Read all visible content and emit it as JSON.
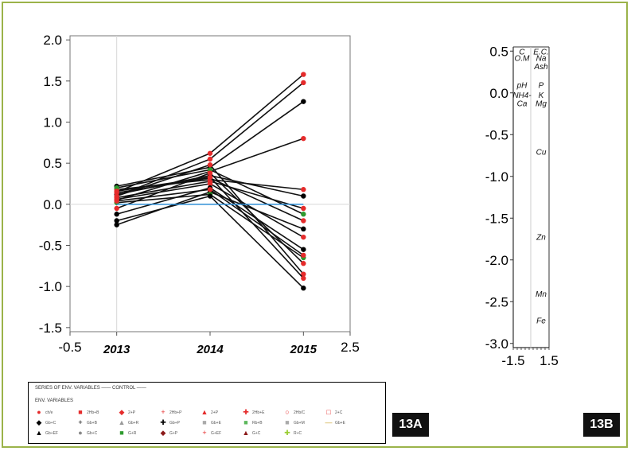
{
  "chart_data": [
    {
      "panel": "13A",
      "type": "line",
      "x_ticks": [
        "-0.5",
        "2013",
        "2014",
        "2015",
        "2.5"
      ],
      "y_ticks": [
        "2.0",
        "1.5",
        "1.0",
        "0.5",
        "0.0",
        "-0.5",
        "-1.0",
        "-1.5"
      ],
      "ylim": [
        -1.55,
        2.05
      ],
      "series": [
        {
          "values": [
            0.22,
            0.45,
            1.25
          ],
          "color": "#000000"
        },
        {
          "values": [
            0.15,
            0.62,
            1.58
          ],
          "color": "#e52b2b"
        },
        {
          "values": [
            0.1,
            0.55,
            1.48
          ],
          "color": "#e52b2b"
        },
        {
          "values": [
            0.05,
            0.4,
            0.8
          ],
          "color": "#e52b2b"
        },
        {
          "values": [
            0.18,
            0.3,
            0.18
          ],
          "color": "#e52b2b"
        },
        {
          "values": [
            0.12,
            0.35,
            0.1
          ],
          "color": "#000000"
        },
        {
          "values": [
            0.08,
            0.28,
            -0.05
          ],
          "color": "#e52b2b"
        },
        {
          "values": [
            0.2,
            0.42,
            -0.12
          ],
          "color": "#2e9a2e"
        },
        {
          "values": [
            0.14,
            0.32,
            -0.2
          ],
          "color": "#e52b2b"
        },
        {
          "values": [
            -0.25,
            0.15,
            -0.3
          ],
          "color": "#000000"
        },
        {
          "values": [
            0.06,
            0.25,
            -0.4
          ],
          "color": "#e52b2b"
        },
        {
          "values": [
            -0.12,
            0.2,
            -0.55
          ],
          "color": "#000000"
        },
        {
          "values": [
            0.02,
            0.12,
            -0.65
          ],
          "color": "#2e9a2e"
        },
        {
          "values": [
            -0.05,
            0.38,
            -0.72
          ],
          "color": "#e52b2b"
        },
        {
          "values": [
            0.1,
            0.48,
            -0.85
          ],
          "color": "#e52b2b"
        },
        {
          "values": [
            0.16,
            0.33,
            -0.9
          ],
          "color": "#e52b2b"
        },
        {
          "values": [
            -0.2,
            0.1,
            -1.02
          ],
          "color": "#000000"
        },
        {
          "values": [
            0.04,
            0.18,
            -0.62
          ],
          "color": "#e52b2b"
        },
        {
          "values": [
            0.0,
            0.0,
            0.0
          ],
          "color": "#2f8fd6"
        }
      ],
      "grid": false
    },
    {
      "panel": "13B",
      "type": "scatter",
      "y_ticks": [
        "0.5",
        "0.0",
        "-0.5",
        "-1.0",
        "-1.5",
        "-2.0",
        "-2.5",
        "-3.0"
      ],
      "x_ticks": [
        "-1.5",
        "1.5"
      ],
      "ylim": [
        -3.05,
        0.55
      ],
      "left_column": [
        {
          "label": "C",
          "y": 0.5
        },
        {
          "label": "O.M",
          "y": 0.42
        },
        {
          "label": "pH",
          "y": 0.1
        },
        {
          "label": "NH4-",
          "y": -0.02
        },
        {
          "label": "Ca",
          "y": -0.12
        }
      ],
      "right_column": [
        {
          "label": "E.C.",
          "y": 0.5
        },
        {
          "label": "Na",
          "y": 0.42
        },
        {
          "label": "Ash",
          "y": 0.32
        },
        {
          "label": "P",
          "y": 0.1
        },
        {
          "label": "K",
          "y": -0.02
        },
        {
          "label": "Mg",
          "y": -0.12
        },
        {
          "label": "Cu",
          "y": -0.7
        },
        {
          "label": "Zn",
          "y": -1.72
        },
        {
          "label": "Mn",
          "y": -2.4
        },
        {
          "label": "Fe",
          "y": -2.72
        }
      ]
    }
  ],
  "legend": {
    "header": "SERIES OF ENV. VARIABLES —— CONTROL ——",
    "subheader": "ENV. VARIABLES",
    "items": [
      {
        "label": "ch/e",
        "marker": "●",
        "color": "#e52b2b"
      },
      {
        "label": "2Hb+B",
        "marker": "■",
        "color": "#e52b2b"
      },
      {
        "label": "2+P",
        "marker": "◆",
        "color": "#e52b2b"
      },
      {
        "label": "2Hb+P",
        "marker": "+",
        "color": "#e52b2b"
      },
      {
        "label": "2+P",
        "marker": "▲",
        "color": "#e52b2b"
      },
      {
        "label": "2Hb+E",
        "marker": "✚",
        "color": "#e52b2b"
      },
      {
        "label": "2Hb/C",
        "marker": "○",
        "color": "#e52b2b"
      },
      {
        "label": "2+C",
        "marker": "□",
        "color": "#e52b2b"
      },
      {
        "label": "Gb+C",
        "marker": "◆",
        "color": "#000000"
      },
      {
        "label": "Gb+B",
        "marker": "+",
        "color": "#000000"
      },
      {
        "label": "Gb+R",
        "marker": "▲",
        "color": "#999999"
      },
      {
        "label": "Gb+P",
        "marker": "✚",
        "color": "#000000"
      },
      {
        "label": "Gb+E",
        "marker": "■",
        "color": "#aaaaaa"
      },
      {
        "label": "Rb+B",
        "marker": "■",
        "color": "#5cb85c"
      },
      {
        "label": "Gb+M",
        "marker": "■",
        "color": "#aaaaaa"
      },
      {
        "label": "Gb+E",
        "marker": "—",
        "color": "#c9a227"
      },
      {
        "label": "Gb+EF",
        "marker": "▲",
        "color": "#000000"
      },
      {
        "label": "Gb+C",
        "marker": "●",
        "color": "#888888"
      },
      {
        "label": "G+R",
        "marker": "■",
        "color": "#2e9a2e"
      },
      {
        "label": "G+P",
        "marker": "◆",
        "color": "#8b1a1a"
      },
      {
        "label": "G+EF",
        "marker": "+",
        "color": "#e52b2b"
      },
      {
        "label": "G+C",
        "marker": "▲",
        "color": "#8b1a1a"
      },
      {
        "label": "R+C",
        "marker": "✚",
        "color": "#9acd32"
      }
    ]
  },
  "tags": {
    "a": "13A",
    "b": "13B"
  },
  "colors": {
    "frame": "#9bb34a",
    "control": "#2f8fd6"
  }
}
